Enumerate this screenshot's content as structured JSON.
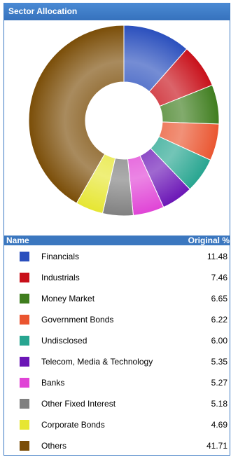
{
  "panel": {
    "title": "Sector Allocation"
  },
  "table": {
    "name_header": "Name",
    "value_header": "Original %"
  },
  "chart_data": {
    "type": "pie",
    "title": "Sector Allocation",
    "series": [
      {
        "name": "Financials",
        "value": 11.48,
        "value_label": "11.48",
        "color": "#2a4fbd"
      },
      {
        "name": "Industrials",
        "value": 7.46,
        "value_label": "7.46",
        "color": "#c8101a"
      },
      {
        "name": "Money Market",
        "value": 6.65,
        "value_label": "6.65",
        "color": "#3f7d1e"
      },
      {
        "name": "Government Bonds",
        "value": 6.22,
        "value_label": "6.22",
        "color": "#ea5530"
      },
      {
        "name": "Undisclosed",
        "value": 6.0,
        "value_label": "6.00",
        "color": "#27a590"
      },
      {
        "name": "Telecom, Media & Technology",
        "value": 5.35,
        "value_label": "5.35",
        "color": "#6b16b6"
      },
      {
        "name": "Banks",
        "value": 5.27,
        "value_label": "5.27",
        "color": "#e044d6"
      },
      {
        "name": "Other Fixed Interest",
        "value": 5.18,
        "value_label": "5.18",
        "color": "#808080"
      },
      {
        "name": "Corporate Bonds",
        "value": 4.69,
        "value_label": "4.69",
        "color": "#e6e632"
      },
      {
        "name": "Others",
        "value": 41.71,
        "value_label": "41.71",
        "color": "#7a4d07"
      }
    ]
  }
}
